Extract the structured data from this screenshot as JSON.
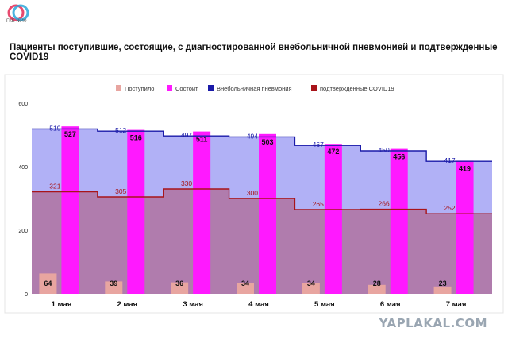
{
  "header": {
    "logo_text": "ГКБ №40",
    "title": "Пациенты поступившие, состоящие, с диагностированной внебольничной пневмонией и подтвержденные COVID19"
  },
  "watermark": "YAPLAKAL.COM",
  "colors": {
    "postupilo": "#e8a5a0",
    "sostoit": "#ff19ff",
    "pneumonia_line": "#1a1aa8",
    "pneumonia_fill": "#b1b1f6",
    "covid_line": "#a8141a",
    "covid_fill": "#b07cad",
    "panel_bg": "#ffffff"
  },
  "chart_data": {
    "type": "bar",
    "title": "Пациенты поступившие, состоящие, с диагностированной внебольничной пневмонией и подтвержденные COVID19",
    "categories": [
      "1 мая",
      "2 мая",
      "3 мая",
      "4 мая",
      "5 мая",
      "6 мая",
      "7 мая"
    ],
    "ylim": [
      0,
      600
    ],
    "yticks": [
      0,
      200,
      400,
      600
    ],
    "legend_position": "top-center",
    "grid": false,
    "series": [
      {
        "name": "Поступило",
        "kind": "bar",
        "values": [
          64,
          39,
          36,
          34,
          34,
          28,
          23
        ]
      },
      {
        "name": "Состоит",
        "kind": "bar",
        "values": [
          527,
          516,
          511,
          503,
          472,
          456,
          419
        ]
      },
      {
        "name": "Внебольничная пневмония",
        "kind": "step-area",
        "values": [
          519,
          512,
          497,
          494,
          467,
          450,
          417
        ]
      },
      {
        "name": "подтвержденные COVID19",
        "kind": "step-area",
        "values": [
          321,
          305,
          330,
          300,
          265,
          266,
          252
        ]
      }
    ]
  }
}
